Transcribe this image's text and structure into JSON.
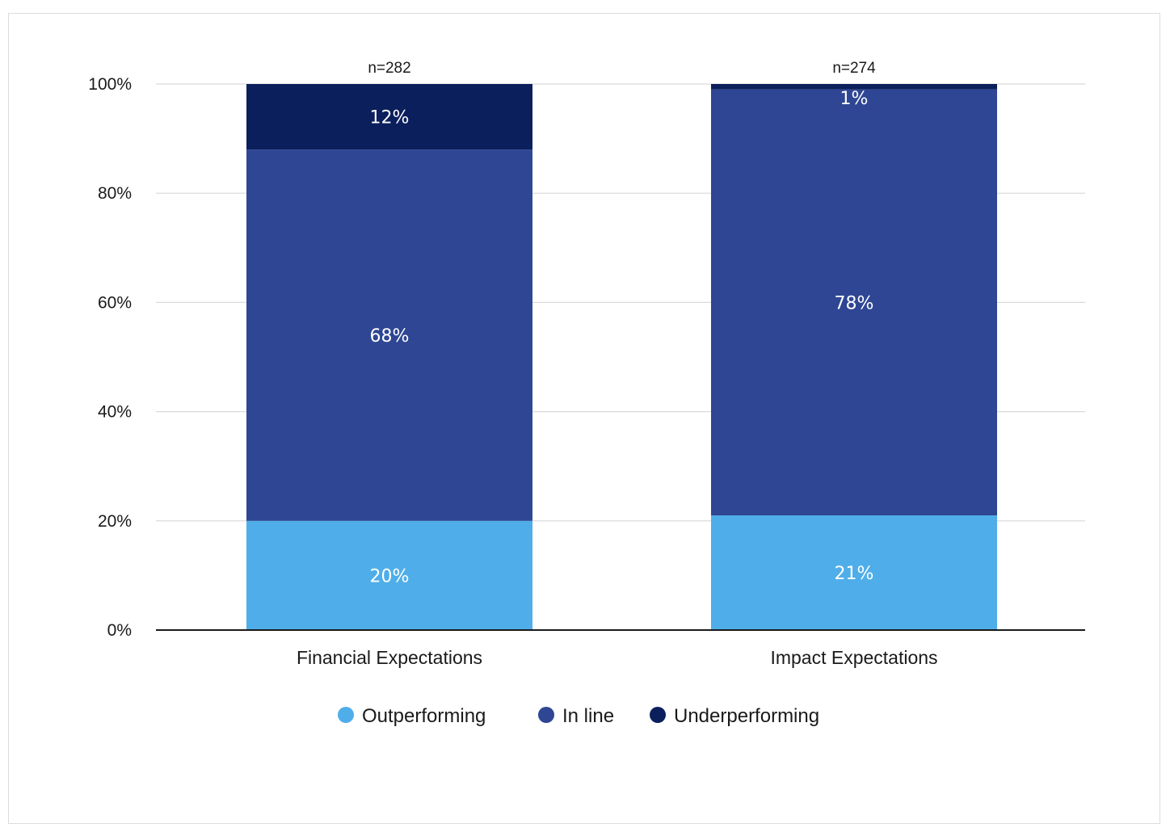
{
  "chart_data": {
    "type": "bar",
    "stacked": true,
    "categories": [
      "Financial Expectations",
      "Impact Expectations"
    ],
    "sample_sizes": [
      "n=282",
      "n=274"
    ],
    "series": [
      {
        "name": "Outperforming",
        "values": [
          20,
          21
        ],
        "labels": [
          "20%",
          "21%"
        ],
        "color": "#4FAEE9"
      },
      {
        "name": "In line",
        "values": [
          68,
          78
        ],
        "labels": [
          "68%",
          "78%"
        ],
        "color": "#2E4693"
      },
      {
        "name": "Underperforming",
        "values": [
          12,
          1
        ],
        "labels": [
          "12%",
          "1%"
        ],
        "color": "#0B1F5C"
      }
    ],
    "ylim": [
      0,
      100
    ],
    "yticks": [
      0,
      20,
      40,
      60,
      80,
      100
    ],
    "ytick_labels": [
      "0%",
      "20%",
      "40%",
      "60%",
      "80%",
      "100%"
    ],
    "xlabel": "",
    "ylabel": "",
    "grid": true,
    "legend_position": "bottom"
  }
}
